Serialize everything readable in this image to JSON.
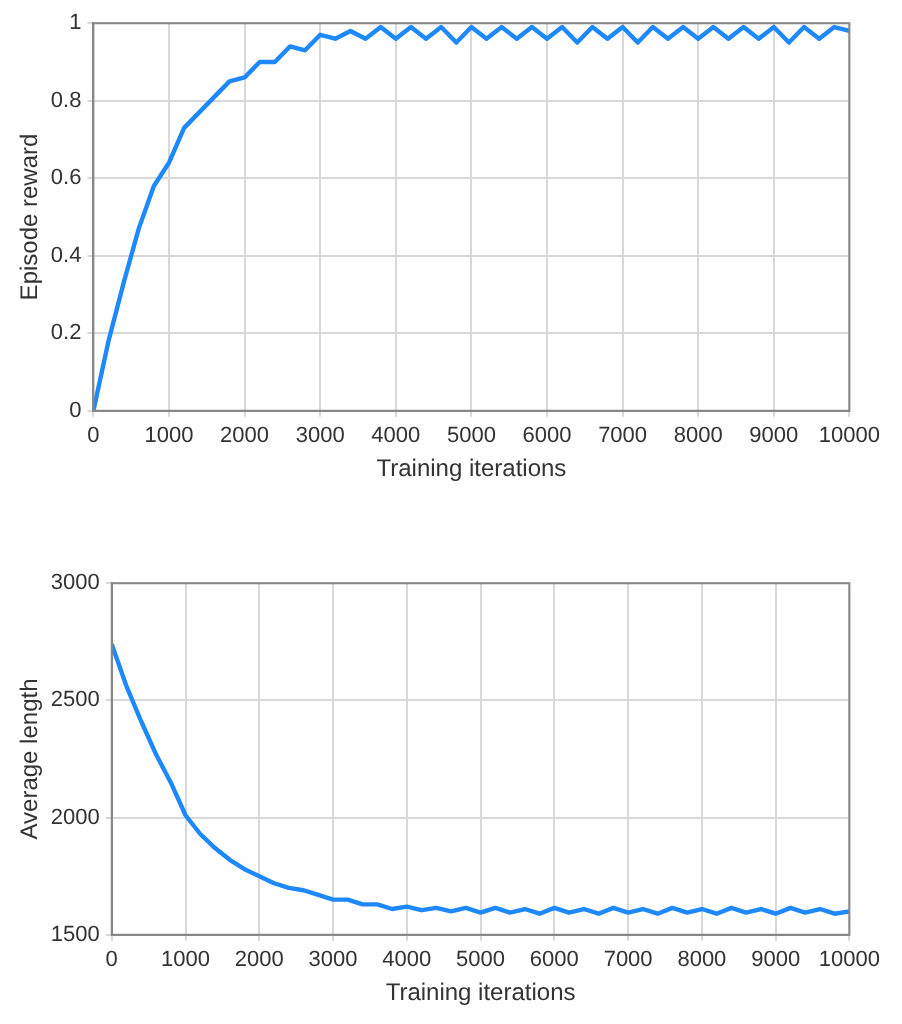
{
  "chart_data": [
    {
      "type": "line",
      "xlabel": "Training iterations",
      "ylabel": "Episode reward",
      "grid": true,
      "legend": false,
      "marker": "none",
      "line_style": "solid",
      "xlim": [
        0,
        10000
      ],
      "xticks": [
        0,
        1000,
        2000,
        3000,
        4000,
        5000,
        6000,
        7000,
        8000,
        9000,
        10000
      ],
      "ylim": [
        0,
        1
      ],
      "yticks": [
        0,
        0.2,
        0.4,
        0.6,
        0.8,
        1
      ],
      "x": [
        0,
        200,
        400,
        600,
        800,
        1000,
        1200,
        1400,
        1600,
        1800,
        2000,
        2200,
        2400,
        2600,
        2800,
        3000,
        3200,
        3400,
        3600,
        3800,
        4000,
        4200,
        4400,
        4600,
        4800,
        5000,
        5200,
        5400,
        5600,
        5800,
        6000,
        6200,
        6400,
        6600,
        6800,
        7000,
        7200,
        7400,
        7600,
        7800,
        8000,
        8200,
        8400,
        8600,
        8800,
        9000,
        9200,
        9400,
        9600,
        9800,
        10000
      ],
      "series": [
        {
          "color": "#1e88ff",
          "values": [
            0.0,
            0.18,
            0.33,
            0.47,
            0.58,
            0.64,
            0.73,
            0.77,
            0.81,
            0.85,
            0.86,
            0.9,
            0.9,
            0.94,
            0.93,
            0.97,
            0.96,
            0.98,
            0.96,
            0.99,
            0.96,
            0.99,
            0.96,
            0.99,
            0.95,
            0.99,
            0.96,
            0.99,
            0.96,
            0.99,
            0.96,
            0.99,
            0.95,
            0.99,
            0.96,
            0.99,
            0.95,
            0.99,
            0.96,
            0.99,
            0.96,
            0.99,
            0.96,
            0.99,
            0.96,
            0.99,
            0.95,
            0.99,
            0.96,
            0.99,
            0.98
          ]
        }
      ]
    },
    {
      "type": "line",
      "xlabel": "Training iterations",
      "ylabel": "Average length",
      "grid": true,
      "legend": false,
      "marker": "none",
      "line_style": "solid",
      "xlim": [
        0,
        10000
      ],
      "xticks": [
        0,
        1000,
        2000,
        3000,
        4000,
        5000,
        6000,
        7000,
        8000,
        9000,
        10000
      ],
      "ylim": [
        1500,
        3000
      ],
      "yticks": [
        1500,
        2000,
        2500,
        3000
      ],
      "x": [
        0,
        200,
        400,
        600,
        800,
        1000,
        1200,
        1400,
        1600,
        1800,
        2000,
        2200,
        2400,
        2600,
        2800,
        3000,
        3200,
        3400,
        3600,
        3800,
        4000,
        4200,
        4400,
        4600,
        4800,
        5000,
        5200,
        5400,
        5600,
        5800,
        6000,
        6200,
        6400,
        6600,
        6800,
        7000,
        7200,
        7400,
        7600,
        7800,
        8000,
        8200,
        8400,
        8600,
        8800,
        9000,
        9200,
        9400,
        9600,
        9800,
        10000
      ],
      "series": [
        {
          "color": "#1e88ff",
          "values": [
            2740,
            2560,
            2410,
            2270,
            2150,
            2010,
            1930,
            1870,
            1820,
            1780,
            1750,
            1720,
            1700,
            1690,
            1670,
            1650,
            1650,
            1630,
            1630,
            1610,
            1620,
            1605,
            1615,
            1600,
            1615,
            1595,
            1615,
            1595,
            1610,
            1590,
            1615,
            1595,
            1610,
            1590,
            1615,
            1595,
            1610,
            1590,
            1615,
            1595,
            1610,
            1590,
            1615,
            1595,
            1610,
            1590,
            1615,
            1595,
            1610,
            1590,
            1600
          ]
        }
      ]
    }
  ]
}
